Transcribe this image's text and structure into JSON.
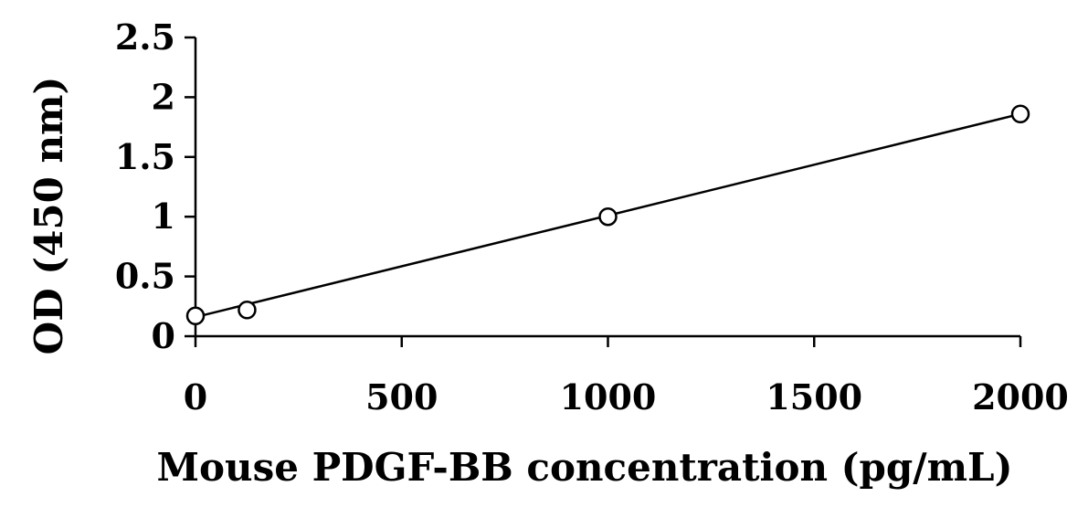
{
  "chart_data": {
    "type": "scatter",
    "xlabel": "Mouse PDGF-BB concentration (pg/mL)",
    "ylabel": "OD (450 nm)",
    "xlim": [
      0,
      2000
    ],
    "ylim": [
      0,
      2.5
    ],
    "xticks": [
      "0",
      "500",
      "1000",
      "1500",
      "2000"
    ],
    "yticks": [
      "0",
      "0.5",
      "1",
      "1.5",
      "2",
      "2.5"
    ],
    "grid": false,
    "series": [
      {
        "points": [
          {
            "x": 0,
            "y": 0.17
          },
          {
            "x": 125,
            "y": 0.22
          },
          {
            "x": 1000,
            "y": 1.0
          },
          {
            "x": 2000,
            "y": 1.86
          }
        ]
      }
    ],
    "trendline": {
      "type": "linear",
      "from": [
        0,
        0.16
      ],
      "to": [
        2000,
        1.86
      ]
    }
  }
}
